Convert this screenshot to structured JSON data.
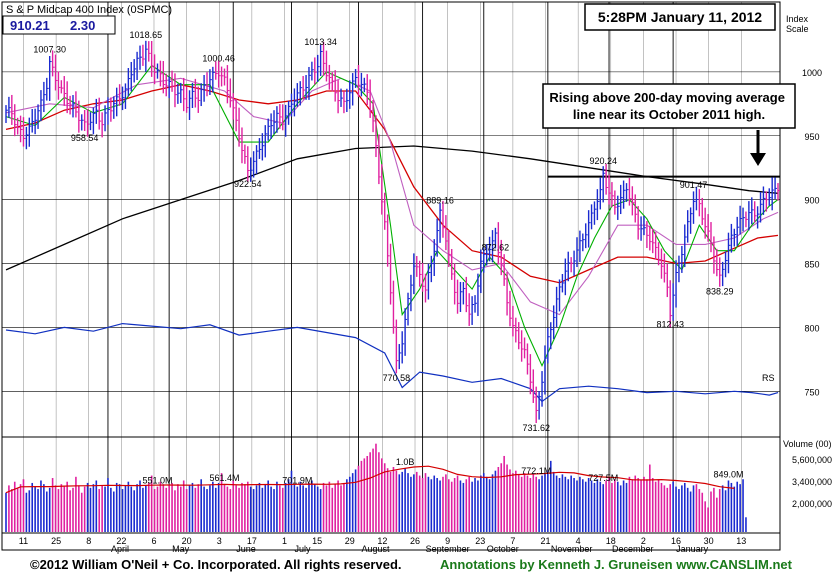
{
  "chart_data": {
    "type": "line",
    "title": "S & P Midcap 400 Index  (0SPMC)",
    "price_box": {
      "price": "910.21",
      "change": "2.30"
    },
    "timestamp": "5:28PM January 11, 2012",
    "scale_label": "Index Scale",
    "annotation": "Rising above 200-day moving average line near its October 2011 high.",
    "volume_label": "Volume (00)",
    "rs_label": "RS",
    "ylim": [
      715,
      1050
    ],
    "y_ticks": [
      750,
      800,
      850,
      900,
      950,
      1000
    ],
    "volume_ticks": [
      "5,600,000",
      "3,400,000",
      "2,000,000"
    ],
    "x_tick_labels": [
      "11",
      "25",
      "8",
      "22",
      "6",
      "20",
      "3",
      "17",
      "1",
      "15",
      "29",
      "12",
      "26",
      "9",
      "23",
      "7",
      "21",
      "4",
      "18",
      "2",
      "16",
      "30",
      "13"
    ],
    "months": [
      "April",
      "May",
      "June",
      "July",
      "August",
      "September",
      "October",
      "November",
      "December",
      "January"
    ],
    "price_labels": [
      {
        "i": 15,
        "v": 1007.3,
        "text": "1007.30"
      },
      {
        "i": 27,
        "v": 958.54,
        "text": "958.54"
      },
      {
        "i": 48,
        "v": 1018.65,
        "text": "1018.65"
      },
      {
        "i": 73,
        "v": 1000.46,
        "text": "1000.46"
      },
      {
        "i": 83,
        "v": 922.54,
        "text": "922.54"
      },
      {
        "i": 108,
        "v": 1013.34,
        "text": "1013.34"
      },
      {
        "i": 134,
        "v": 770.58,
        "text": "770.58"
      },
      {
        "i": 149,
        "v": 889.16,
        "text": "889.16"
      },
      {
        "i": 168,
        "v": 872.62,
        "text": "872.62"
      },
      {
        "i": 182,
        "v": 731.62,
        "text": "731.62"
      },
      {
        "i": 205,
        "v": 920.24,
        "text": "920.24"
      },
      {
        "i": 228,
        "v": 812.43,
        "text": "812.43"
      },
      {
        "i": 236,
        "v": 901.47,
        "text": "901.47"
      },
      {
        "i": 245,
        "v": 838.29,
        "text": "838.29"
      }
    ],
    "volume_labels": [
      {
        "i": 52,
        "text": "551.0M"
      },
      {
        "i": 75,
        "text": "561.4M"
      },
      {
        "i": 100,
        "text": "701.9M"
      },
      {
        "i": 137,
        "text": "1.0B"
      },
      {
        "i": 182,
        "text": "772.1M"
      },
      {
        "i": 205,
        "text": "727.5M"
      },
      {
        "i": 248,
        "text": "849.0M"
      }
    ],
    "resistance_level": 918,
    "price_path": [
      [
        0,
        970
      ],
      [
        2,
        968
      ],
      [
        4,
        955
      ],
      [
        6,
        950
      ],
      [
        8,
        955
      ],
      [
        10,
        965
      ],
      [
        12,
        975
      ],
      [
        14,
        990
      ],
      [
        15,
        1007
      ],
      [
        17,
        995
      ],
      [
        19,
        985
      ],
      [
        21,
        978
      ],
      [
        23,
        972
      ],
      [
        25,
        965
      ],
      [
        27,
        958
      ],
      [
        29,
        963
      ],
      [
        31,
        968
      ],
      [
        33,
        960
      ],
      [
        35,
        970
      ],
      [
        37,
        975
      ],
      [
        39,
        980
      ],
      [
        41,
        985
      ],
      [
        43,
        1000
      ],
      [
        45,
        1008
      ],
      [
        47,
        1013
      ],
      [
        48,
        1018
      ],
      [
        50,
        1005
      ],
      [
        52,
        1000
      ],
      [
        54,
        992
      ],
      [
        56,
        990
      ],
      [
        58,
        985
      ],
      [
        60,
        983
      ],
      [
        62,
        975
      ],
      [
        64,
        982
      ],
      [
        66,
        980
      ],
      [
        68,
        988
      ],
      [
        70,
        995
      ],
      [
        73,
        1000
      ],
      [
        75,
        993
      ],
      [
        77,
        980
      ],
      [
        79,
        960
      ],
      [
        81,
        940
      ],
      [
        83,
        922
      ],
      [
        85,
        930
      ],
      [
        87,
        940
      ],
      [
        89,
        950
      ],
      [
        91,
        960
      ],
      [
        93,
        965
      ],
      [
        95,
        962
      ],
      [
        97,
        970
      ],
      [
        99,
        980
      ],
      [
        101,
        985
      ],
      [
        103,
        990
      ],
      [
        105,
        1000
      ],
      [
        107,
        1005
      ],
      [
        108,
        1013
      ],
      [
        110,
        1000
      ],
      [
        112,
        990
      ],
      [
        114,
        980
      ],
      [
        116,
        975
      ],
      [
        118,
        985
      ],
      [
        120,
        995
      ],
      [
        122,
        990
      ],
      [
        124,
        985
      ],
      [
        126,
        960
      ],
      [
        128,
        920
      ],
      [
        130,
        880
      ],
      [
        132,
        830
      ],
      [
        134,
        771
      ],
      [
        136,
        790
      ],
      [
        138,
        820
      ],
      [
        140,
        850
      ],
      [
        142,
        840
      ],
      [
        144,
        830
      ],
      [
        146,
        850
      ],
      [
        148,
        875
      ],
      [
        149,
        889
      ],
      [
        151,
        870
      ],
      [
        153,
        840
      ],
      [
        155,
        820
      ],
      [
        157,
        830
      ],
      [
        159,
        810
      ],
      [
        161,
        820
      ],
      [
        163,
        850
      ],
      [
        165,
        860
      ],
      [
        167,
        865
      ],
      [
        168,
        873
      ],
      [
        170,
        850
      ],
      [
        172,
        820
      ],
      [
        174,
        800
      ],
      [
        176,
        790
      ],
      [
        178,
        780
      ],
      [
        180,
        760
      ],
      [
        182,
        732
      ],
      [
        184,
        760
      ],
      [
        186,
        790
      ],
      [
        188,
        810
      ],
      [
        190,
        830
      ],
      [
        192,
        845
      ],
      [
        194,
        850
      ],
      [
        196,
        860
      ],
      [
        198,
        870
      ],
      [
        200,
        880
      ],
      [
        202,
        895
      ],
      [
        204,
        905
      ],
      [
        205,
        920
      ],
      [
        207,
        905
      ],
      [
        209,
        895
      ],
      [
        211,
        900
      ],
      [
        213,
        910
      ],
      [
        215,
        895
      ],
      [
        217,
        880
      ],
      [
        219,
        875
      ],
      [
        221,
        870
      ],
      [
        223,
        860
      ],
      [
        225,
        850
      ],
      [
        227,
        830
      ],
      [
        228,
        812
      ],
      [
        230,
        840
      ],
      [
        232,
        860
      ],
      [
        234,
        880
      ],
      [
        236,
        901
      ],
      [
        238,
        895
      ],
      [
        240,
        880
      ],
      [
        242,
        865
      ],
      [
        244,
        845
      ],
      [
        245,
        838
      ],
      [
        247,
        855
      ],
      [
        249,
        870
      ],
      [
        251,
        880
      ],
      [
        253,
        885
      ],
      [
        255,
        890
      ],
      [
        257,
        888
      ],
      [
        259,
        895
      ],
      [
        261,
        902
      ],
      [
        263,
        905
      ],
      [
        265,
        910
      ]
    ],
    "ma50": [
      [
        0,
        955
      ],
      [
        10,
        960
      ],
      [
        20,
        970
      ],
      [
        30,
        975
      ],
      [
        40,
        978
      ],
      [
        50,
        985
      ],
      [
        60,
        990
      ],
      [
        70,
        985
      ],
      [
        80,
        978
      ],
      [
        90,
        975
      ],
      [
        100,
        978
      ],
      [
        110,
        985
      ],
      [
        120,
        985
      ],
      [
        130,
        955
      ],
      [
        140,
        910
      ],
      [
        150,
        880
      ],
      [
        160,
        860
      ],
      [
        170,
        855
      ],
      [
        180,
        840
      ],
      [
        190,
        835
      ],
      [
        200,
        845
      ],
      [
        210,
        855
      ],
      [
        220,
        855
      ],
      [
        230,
        850
      ],
      [
        240,
        852
      ],
      [
        250,
        862
      ],
      [
        258,
        870
      ],
      [
        265,
        872
      ]
    ],
    "ma200": [
      [
        0,
        845
      ],
      [
        20,
        865
      ],
      [
        40,
        885
      ],
      [
        60,
        900
      ],
      [
        80,
        915
      ],
      [
        100,
        932
      ],
      [
        120,
        940
      ],
      [
        140,
        942
      ],
      [
        160,
        938
      ],
      [
        180,
        932
      ],
      [
        200,
        925
      ],
      [
        220,
        918
      ],
      [
        240,
        912
      ],
      [
        255,
        907
      ],
      [
        265,
        905
      ]
    ],
    "ma10": [
      [
        0,
        965
      ],
      [
        10,
        958
      ],
      [
        20,
        980
      ],
      [
        30,
        968
      ],
      [
        40,
        975
      ],
      [
        50,
        1005
      ],
      [
        60,
        990
      ],
      [
        70,
        990
      ],
      [
        80,
        945
      ],
      [
        90,
        945
      ],
      [
        100,
        975
      ],
      [
        110,
        1000
      ],
      [
        120,
        990
      ],
      [
        126,
        975
      ],
      [
        132,
        880
      ],
      [
        136,
        810
      ],
      [
        142,
        830
      ],
      [
        148,
        860
      ],
      [
        154,
        845
      ],
      [
        160,
        830
      ],
      [
        166,
        855
      ],
      [
        172,
        840
      ],
      [
        178,
        800
      ],
      [
        184,
        770
      ],
      [
        190,
        800
      ],
      [
        196,
        840
      ],
      [
        202,
        870
      ],
      [
        208,
        895
      ],
      [
        214,
        900
      ],
      [
        220,
        885
      ],
      [
        226,
        860
      ],
      [
        232,
        845
      ],
      [
        238,
        880
      ],
      [
        244,
        860
      ],
      [
        250,
        860
      ],
      [
        256,
        880
      ],
      [
        262,
        895
      ],
      [
        265,
        900
      ]
    ],
    "ma20": [
      [
        0,
        968
      ],
      [
        15,
        975
      ],
      [
        30,
        972
      ],
      [
        45,
        990
      ],
      [
        60,
        995
      ],
      [
        75,
        985
      ],
      [
        85,
        965
      ],
      [
        95,
        960
      ],
      [
        105,
        985
      ],
      [
        115,
        995
      ],
      [
        125,
        985
      ],
      [
        132,
        945
      ],
      [
        140,
        880
      ],
      [
        150,
        860
      ],
      [
        160,
        845
      ],
      [
        170,
        850
      ],
      [
        180,
        820
      ],
      [
        190,
        810
      ],
      [
        200,
        840
      ],
      [
        210,
        880
      ],
      [
        220,
        880
      ],
      [
        230,
        865
      ],
      [
        240,
        865
      ],
      [
        250,
        870
      ],
      [
        260,
        885
      ],
      [
        265,
        890
      ]
    ],
    "rs_line": [
      [
        0,
        798
      ],
      [
        10,
        795
      ],
      [
        20,
        800
      ],
      [
        30,
        797
      ],
      [
        40,
        803
      ],
      [
        50,
        801
      ],
      [
        60,
        799
      ],
      [
        70,
        802
      ],
      [
        80,
        794
      ],
      [
        90,
        797
      ],
      [
        100,
        800
      ],
      [
        110,
        796
      ],
      [
        120,
        792
      ],
      [
        130,
        780
      ],
      [
        136,
        753
      ],
      [
        142,
        765
      ],
      [
        150,
        762
      ],
      [
        160,
        757
      ],
      [
        170,
        760
      ],
      [
        180,
        752
      ],
      [
        184,
        742
      ],
      [
        190,
        752
      ],
      [
        200,
        754
      ],
      [
        210,
        752
      ],
      [
        220,
        749
      ],
      [
        230,
        750
      ],
      [
        240,
        748
      ],
      [
        250,
        750
      ],
      [
        256,
        749
      ],
      [
        262,
        747
      ],
      [
        265,
        749
      ]
    ],
    "volume": [
      3.2,
      3.8,
      3.5,
      4.1,
      3.6,
      3.9,
      4.3,
      3.2,
      3.4,
      4.0,
      3.7,
      3.5,
      4.2,
      3.9,
      3.3,
      3.6,
      4.4,
      3.8,
      3.5,
      3.9,
      3.7,
      4.1,
      3.4,
      3.6,
      4.5,
      3.8,
      3.2,
      3.7,
      4.0,
      3.6,
      3.9,
      4.2,
      3.5,
      3.8,
      3.7,
      4.4,
      3.6,
      3.3,
      4.0,
      3.9,
      3.5,
      3.8,
      4.1,
      3.7,
      3.4,
      3.9,
      4.2,
      3.6,
      3.8,
      4.0,
      4.6,
      3.5,
      3.7,
      4.1,
      3.9,
      3.6,
      3.8,
      4.0,
      3.4,
      3.9,
      3.7,
      4.2,
      3.5,
      3.8,
      4.0,
      3.6,
      3.9,
      4.3,
      3.7,
      3.5,
      3.8,
      4.1,
      3.6,
      4.0,
      4.8,
      3.9,
      3.7,
      3.5,
      4.2,
      3.8,
      3.6,
      4.0,
      3.9,
      4.1,
      3.7,
      3.5,
      3.8,
      4.0,
      3.6,
      3.9,
      4.2,
      3.7,
      3.5,
      4.1,
      3.8,
      3.6,
      4.0,
      4.3,
      5.0,
      3.9,
      3.7,
      4.1,
      3.8,
      3.6,
      4.0,
      4.2,
      3.9,
      3.7,
      3.5,
      4.0,
      3.8,
      4.1,
      3.6,
      3.9,
      4.2,
      3.8,
      4.0,
      4.3,
      4.5,
      4.8,
      5.1,
      5.4,
      5.8,
      6.0,
      6.2,
      6.5,
      6.8,
      7.2,
      6.5,
      6.0,
      5.6,
      5.2,
      4.9,
      5.3,
      5.0,
      4.7,
      4.9,
      5.2,
      4.8,
      4.5,
      4.7,
      4.9,
      4.6,
      4.4,
      4.8,
      4.5,
      4.3,
      4.6,
      4.4,
      4.2,
      4.5,
      4.7,
      4.3,
      4.1,
      4.4,
      4.6,
      4.2,
      4.0,
      4.3,
      4.5,
      4.1,
      4.4,
      4.2,
      4.6,
      4.8,
      4.5,
      4.3,
      4.7,
      5.0,
      5.3,
      5.6,
      6.2,
      5.5,
      5.1,
      4.8,
      5.0,
      4.7,
      4.5,
      4.8,
      4.6,
      4.4,
      4.7,
      4.5,
      4.3,
      4.6,
      4.8,
      5.0,
      5.8,
      4.9,
      4.6,
      4.4,
      4.7,
      4.5,
      4.3,
      4.6,
      4.4,
      4.2,
      4.5,
      4.3,
      4.1,
      4.4,
      4.2,
      4.0,
      4.3,
      4.1,
      3.9,
      4.2,
      4.4,
      4.0,
      4.3,
      4.1,
      3.8,
      4.2,
      4.0,
      4.5,
      4.3,
      4.6,
      4.4,
      4.2,
      4.5,
      4.3,
      5.5,
      4.4,
      4.1,
      4.3,
      4.0,
      3.8,
      3.6,
      3.9,
      4.1,
      3.7,
      3.5,
      3.8,
      4.0,
      3.6,
      3.3,
      3.8,
      3.9,
      3.5,
      3.2,
      2.5,
      2.0,
      3.3,
      3.6,
      2.8,
      3.5,
      3.8,
      3.4,
      4.2,
      4.0,
      3.7,
      4.1,
      3.9,
      4.3,
      1.2
    ]
  }
}
